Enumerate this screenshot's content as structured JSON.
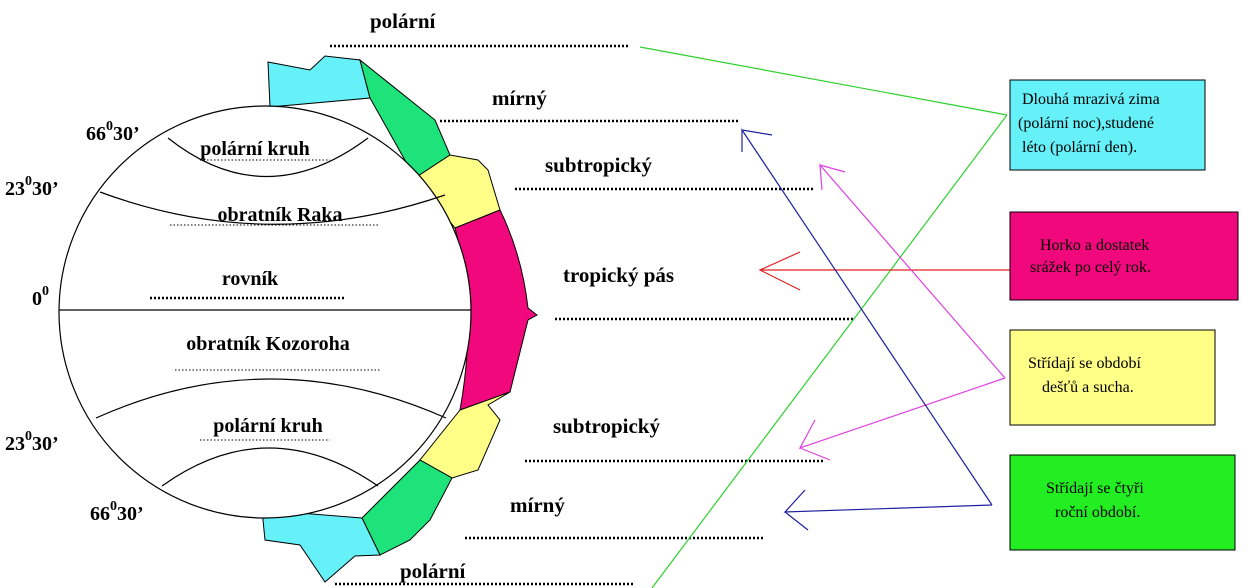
{
  "zones": {
    "top": [
      "polární",
      "mírný",
      "subtropický"
    ],
    "middle": "tropický pás",
    "bottom": [
      "subtropický",
      "mírný",
      "polární"
    ]
  },
  "globe": {
    "lines": [
      "polární kruh",
      "obratník Raka",
      "rovník",
      "obratník Kozoroha",
      "polární kruh"
    ],
    "latitudes": [
      {
        "deg": "66",
        "sup": "0",
        "min": "30’"
      },
      {
        "deg": "23",
        "sup": "0",
        "min": "30’"
      },
      {
        "deg": "0",
        "sup": "0"
      },
      {
        "deg": "23",
        "sup": "0",
        "min": "30’"
      },
      {
        "deg": "66",
        "sup": "0",
        "min": "30’"
      }
    ]
  },
  "boxes": [
    {
      "lines": [
        "Dlouhá mrazivá zima",
        "(polární noc),studené",
        "léto (polární den)."
      ]
    },
    {
      "lines": [
        "Horko a dostatek",
        "srážek po celý rok."
      ]
    },
    {
      "lines": [
        "Střídají se období",
        "dešťů a sucha."
      ]
    },
    {
      "lines": [
        "Střídají se čtyři",
        "roční období."
      ]
    }
  ]
}
